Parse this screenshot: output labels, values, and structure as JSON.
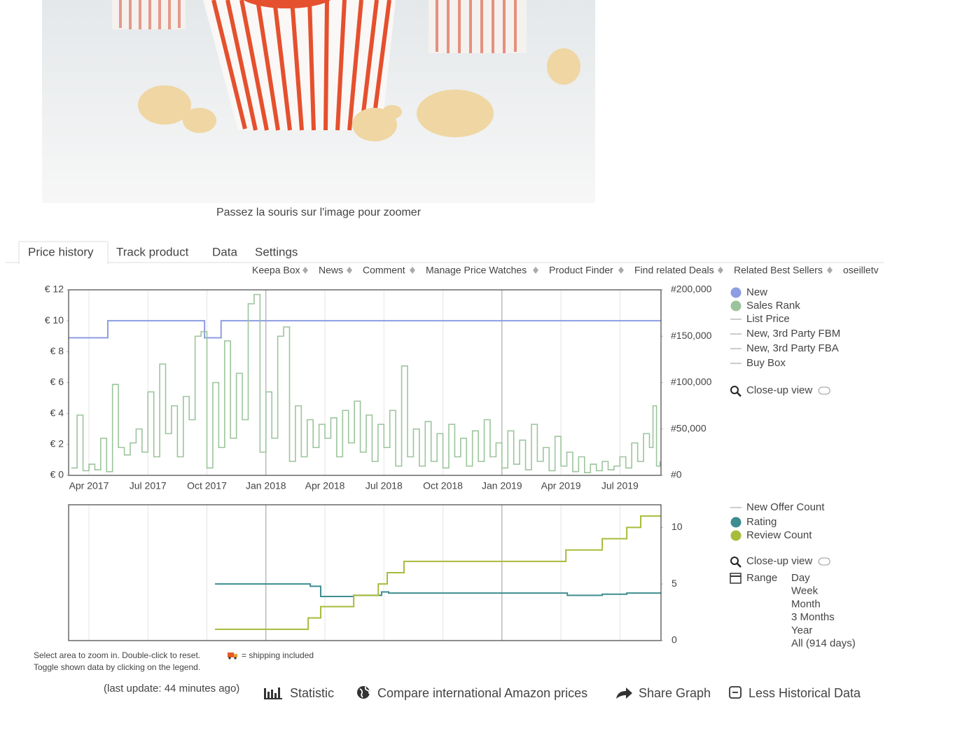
{
  "image_caption": "Passez la souris sur l'image pour zoomer",
  "tabs": [
    "Price history",
    "Track product",
    "Data",
    "Settings"
  ],
  "links": [
    "Keepa Box",
    "News",
    "Comment",
    "Manage Price Watches",
    "Product Finder",
    "Find related Deals",
    "Related Best Sellers",
    "oseilletv"
  ],
  "chart_data": [
    {
      "type": "line",
      "step": true,
      "xlim": [
        2017.164,
        2019.674
      ],
      "xticks": [
        {
          "value": 2017.25,
          "label": "Apr 2017"
        },
        {
          "value": 2017.5,
          "label": "Jul 2017"
        },
        {
          "value": 2017.75,
          "label": "Oct 2017"
        },
        {
          "value": 2018.0,
          "label": "Jan 2018"
        },
        {
          "value": 2018.25,
          "label": "Apr 2018"
        },
        {
          "value": 2018.5,
          "label": "Jul 2018"
        },
        {
          "value": 2018.75,
          "label": "Oct 2018"
        },
        {
          "value": 2019.0,
          "label": "Jan 2019"
        },
        {
          "value": 2019.25,
          "label": "Apr 2019"
        },
        {
          "value": 2019.5,
          "label": "Jul 2019"
        }
      ],
      "show_xtick_labels": true,
      "ylim": [
        0,
        12
      ],
      "yticks": [
        {
          "value": 0,
          "label": "€ 0"
        },
        {
          "value": 2,
          "label": "€ 2"
        },
        {
          "value": 4,
          "label": "€ 4"
        },
        {
          "value": 6,
          "label": "€ 6"
        },
        {
          "value": 8,
          "label": "€ 8"
        },
        {
          "value": 10,
          "label": "€ 10"
        },
        {
          "value": 12,
          "label": "€ 12"
        }
      ],
      "yaxis_side": "left",
      "y2lim": [
        0,
        200000
      ],
      "y2ticks": [
        {
          "value": 0,
          "label": "#0"
        },
        {
          "value": 50000,
          "label": "#50,000"
        },
        {
          "value": 100000,
          "label": "#100,000"
        },
        {
          "value": 150000,
          "label": "#150,000"
        },
        {
          "value": 200000,
          "label": "#200,000"
        }
      ],
      "series": [
        {
          "name": "New",
          "color": "#8d9de2",
          "x": [
            2017.164,
            2017.33,
            2017.74,
            2017.81,
            2019.674
          ],
          "values": [
            8.9,
            10,
            8.9,
            10,
            10
          ]
        },
        {
          "name": "Sales Rank",
          "color": "#9cc49c",
          "axis": "y2",
          "x": [
            2017.175,
            2017.2,
            2017.225,
            2017.25,
            2017.275,
            2017.3,
            2017.325,
            2017.35,
            2017.375,
            2017.4,
            2017.425,
            2017.45,
            2017.475,
            2017.5,
            2017.525,
            2017.55,
            2017.575,
            2017.6,
            2017.625,
            2017.65,
            2017.675,
            2017.7,
            2017.725,
            2017.75,
            2017.775,
            2017.8,
            2017.825,
            2017.85,
            2017.875,
            2017.9,
            2017.925,
            2017.95,
            2017.975,
            2018.0,
            2018.025,
            2018.05,
            2018.075,
            2018.1,
            2018.125,
            2018.15,
            2018.175,
            2018.2,
            2018.225,
            2018.25,
            2018.275,
            2018.3,
            2018.325,
            2018.35,
            2018.375,
            2018.4,
            2018.425,
            2018.45,
            2018.475,
            2018.5,
            2018.525,
            2018.55,
            2018.575,
            2018.6,
            2018.625,
            2018.65,
            2018.675,
            2018.7,
            2018.725,
            2018.75,
            2018.775,
            2018.8,
            2018.825,
            2018.85,
            2018.875,
            2018.9,
            2018.925,
            2018.95,
            2018.975,
            2019.0,
            2019.025,
            2019.05,
            2019.075,
            2019.1,
            2019.125,
            2019.15,
            2019.175,
            2019.2,
            2019.225,
            2019.25,
            2019.275,
            2019.3,
            2019.325,
            2019.35,
            2019.375,
            2019.4,
            2019.425,
            2019.45,
            2019.475,
            2019.5,
            2019.525,
            2019.55,
            2019.575,
            2019.6,
            2019.625,
            2019.64,
            2019.655,
            2019.67
          ],
          "values": [
            8000,
            65000,
            5000,
            12000,
            6000,
            40000,
            4000,
            98000,
            30000,
            22000,
            35000,
            50000,
            25000,
            90000,
            20000,
            120000,
            45000,
            75000,
            20000,
            85000,
            60000,
            150000,
            155000,
            8000,
            100000,
            30000,
            145000,
            40000,
            110000,
            60000,
            185000,
            195000,
            25000,
            90000,
            40000,
            150000,
            160000,
            15000,
            75000,
            20000,
            60000,
            30000,
            55000,
            40000,
            62000,
            20000,
            70000,
            35000,
            80000,
            25000,
            65000,
            15000,
            55000,
            30000,
            70000,
            10000,
            118000,
            20000,
            50000,
            10000,
            58000,
            15000,
            45000,
            8000,
            55000,
            20000,
            40000,
            10000,
            48000,
            15000,
            60000,
            20000,
            35000,
            8000,
            48000,
            12000,
            38000,
            6000,
            55000,
            15000,
            30000,
            5000,
            42000,
            10000,
            25000,
            4000,
            20000,
            3000,
            12000,
            5000,
            15000,
            6000,
            10000,
            20000,
            8000,
            35000,
            15000,
            45000,
            30000,
            75000,
            10000,
            15000
          ]
        }
      ],
      "inactive_legend": [
        "List Price",
        "New, 3rd Party FBM",
        "New, 3rd Party FBA",
        "Buy Box"
      ],
      "inactive_first": false,
      "close_up": "Close-up view"
    },
    {
      "type": "line",
      "step": true,
      "xlim": [
        2017.164,
        2019.674
      ],
      "xticks": [
        2017.25,
        2017.5,
        2017.75,
        2018.0,
        2018.25,
        2018.5,
        2018.75,
        2019.0,
        2019.25,
        2019.5
      ],
      "show_xtick_labels": false,
      "ylim": [
        0,
        12
      ],
      "yticks": [
        0,
        5,
        10
      ],
      "yaxis_side": "right",
      "series": [
        {
          "name": "Rating",
          "color": "#3d8d8f",
          "x": [
            2017.784,
            2018.188,
            2018.232,
            2018.372,
            2018.49,
            2018.52,
            2019.277,
            2019.425,
            2019.529,
            2019.674
          ],
          "values": [
            5,
            4.8,
            3.9,
            4,
            4.3,
            4.2,
            4,
            4.1,
            4.2,
            4.2
          ]
        },
        {
          "name": "Review Count",
          "color": "#a9bb3a",
          "x": [
            2017.784,
            2018.179,
            2018.232,
            2018.372,
            2018.476,
            2018.514,
            2018.585,
            2019.271,
            2019.425,
            2019.529,
            2019.588,
            2019.674
          ],
          "values": [
            1,
            2,
            3,
            4,
            5,
            6,
            7,
            8,
            9,
            10,
            11,
            11
          ]
        }
      ],
      "inactive_legend": [
        "New Offer Count"
      ],
      "inactive_first": true,
      "close_up": "Close-up view",
      "range": {
        "label": "Range",
        "options": [
          "Day",
          "Week",
          "Month",
          "3 Months",
          "Year",
          "All (914 days)"
        ]
      }
    }
  ],
  "notes": {
    "zoom": "Select area to zoom in. Double-click to reset.",
    "shipping": "= shipping included",
    "toggle": "Toggle shown data by clicking on the legend."
  },
  "footer": {
    "last_update": "(last update: 44 minutes ago)",
    "actions": [
      "Statistic",
      "Compare international Amazon prices",
      "Share Graph",
      "Less Historical Data"
    ]
  }
}
